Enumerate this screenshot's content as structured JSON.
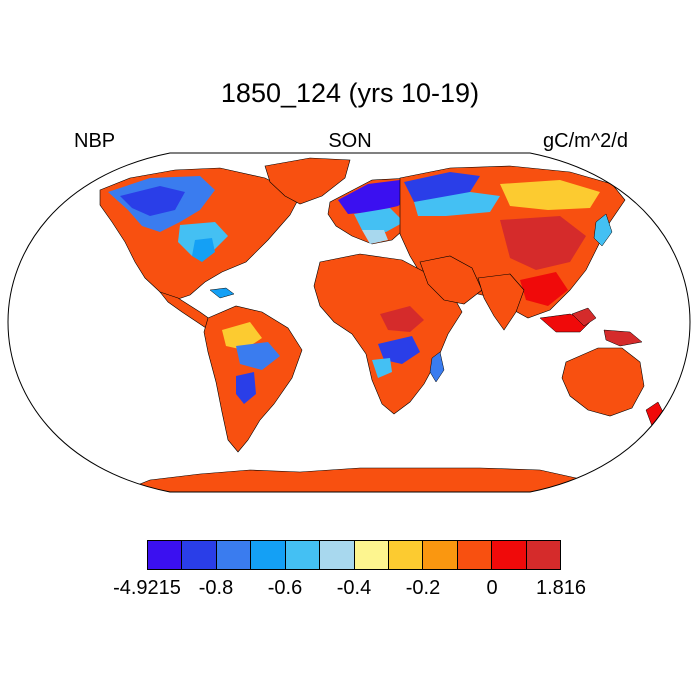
{
  "map": {
    "title": "1850_124 (yrs 10-19)",
    "left_label": "NBP",
    "center_label": "SON",
    "right_label": "gC/m^2/d",
    "projection": "robinson"
  },
  "colorbar": {
    "colors": [
      "#3b10f0",
      "#2a3ee8",
      "#3a7cef",
      "#14a0f5",
      "#44c0f3",
      "#a8d8ee",
      "#fdf58f",
      "#fccb30",
      "#fa9710",
      "#f85010",
      "#f00a0a",
      "#d52b2b"
    ],
    "tick_labels": [
      "-4.9215",
      "-0.8",
      "-0.6",
      "-0.4",
      "-0.2",
      "0",
      "1.816"
    ]
  },
  "colors": {
    "ocean": "#ffffff",
    "outline": "#000000",
    "dominant_land": "#f85010"
  }
}
